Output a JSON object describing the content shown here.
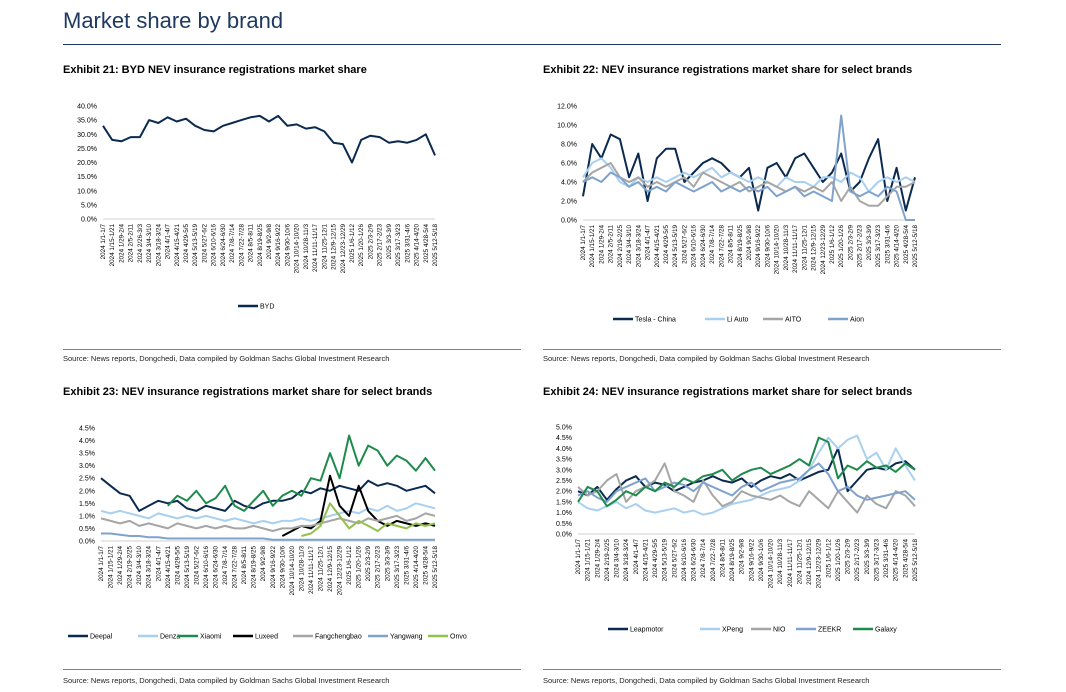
{
  "page": {
    "title": "Market share by brand",
    "source": "Source: News reports, Dongchedi, Data compiled by Goldman Sachs Global Investment Research"
  },
  "chart_data": [
    {
      "id": "ex21",
      "type": "line",
      "title": "Exhibit 21: BYD NEV insurance registrations market share",
      "xlabel": "",
      "ylabel": "",
      "ylim": [
        0,
        0.4
      ],
      "ytick_step": 0.05,
      "ytick_decimals": 1,
      "legend_position": "bottom",
      "categories": [
        "2024 1/1-1/7",
        "2024 1/15-1/21",
        "2024 1/29-2/4",
        "2024 2/5-2/11",
        "2024 2/26-3/3",
        "2024 3/4-3/10",
        "2024 3/18-3/24",
        "2024 4/1-4/7",
        "2024 4/15-4/21",
        "2024 4/29-5/5",
        "2024 5/13-5/19",
        "2024 5/27-6/2",
        "2024 6/10-6/16",
        "2024 6/24-6/30",
        "2024 7/8-7/14",
        "2024 7/22-7/28",
        "2024 8/5-8/11",
        "2024 8/19-8/25",
        "2024 9/2-9/8",
        "2024 9/16-9/22",
        "2024 9/30-10/6",
        "2024 10/14-10/20",
        "2024 10/28-11/3",
        "2024 11/11-11/17",
        "2024 11/25-12/1",
        "2024 12/9-12/15",
        "2024 12/23-12/29",
        "2025 1/6-1/12",
        "2025 1/20-1/26",
        "2025 2/3-2/9",
        "2025 2/17-2/23",
        "2025 3/3-3/9",
        "2025 3/17-3/23",
        "2025 3/31-4/6",
        "2025 4/14-4/20",
        "2025 4/28-5/4",
        "2025 5/12-5/18"
      ],
      "series": [
        {
          "name": "BYD",
          "color": "#0b2a50",
          "values": [
            0.33,
            0.28,
            0.275,
            0.29,
            0.29,
            0.35,
            0.34,
            0.36,
            0.345,
            0.355,
            0.33,
            0.315,
            0.31,
            0.33,
            0.34,
            0.35,
            0.36,
            0.365,
            0.345,
            0.365,
            0.33,
            0.335,
            0.32,
            0.325,
            0.31,
            0.27,
            0.265,
            0.2,
            0.28,
            0.295,
            0.29,
            0.27,
            0.275,
            0.27,
            0.28,
            0.3,
            0.225
          ]
        }
      ]
    },
    {
      "id": "ex22",
      "type": "line",
      "title": "Exhibit 22: NEV insurance registrations market share for select brands",
      "xlabel": "",
      "ylabel": "",
      "ylim": [
        0,
        0.12
      ],
      "ytick_step": 0.02,
      "ytick_decimals": 1,
      "legend_position": "bottom",
      "categories": [
        "2024 1/1-1/7",
        "2024 1/15-1/21",
        "2024 1/29-2/4",
        "2024 2/5-2/11",
        "2024 2/19-2/25",
        "2024 3/4-3/10",
        "2024 3/18-3/24",
        "2024 4/1-4/7",
        "2024 4/15-4/21",
        "2024 4/29-5/5",
        "2024 5/13-5/19",
        "2024 5/27-6/2",
        "2024 6/10-6/16",
        "2024 6/24-6/30",
        "2024 7/8-7/14",
        "2024 7/22-7/28",
        "2024 8/5-8/11",
        "2024 8/19-8/25",
        "2024 9/2-9/8",
        "2024 9/16-9/22",
        "2024 9/30-10/6",
        "2024 10/14-10/20",
        "2024 10/28-11/3",
        "2024 11/11-11/17",
        "2024 11/25-12/1",
        "2024 12/9-12/15",
        "2024 12/23-12/29",
        "2025 1/6-1/12",
        "2025 1/20-1/26",
        "2025 2/3-2/9",
        "2025 2/17-2/23",
        "2025 3/3-3/9",
        "2025 3/17-3/23",
        "2025 3/31-4/6",
        "2025 4/14-4/20",
        "2025 4/28-5/4",
        "2025 5/12-5/18"
      ],
      "series": [
        {
          "name": "Tesla - China",
          "color": "#0b2a50",
          "values": [
            0.025,
            0.08,
            0.065,
            0.09,
            0.085,
            0.045,
            0.07,
            0.02,
            0.065,
            0.075,
            0.075,
            0.04,
            0.05,
            0.06,
            0.065,
            0.06,
            0.05,
            0.045,
            0.055,
            0.01,
            0.055,
            0.06,
            0.045,
            0.065,
            0.07,
            0.055,
            0.04,
            0.05,
            0.07,
            0.03,
            0.04,
            0.065,
            0.085,
            0.02,
            0.055,
            0.01,
            0.045
          ]
        },
        {
          "name": "Li Auto",
          "color": "#a9d0ee",
          "values": [
            0.045,
            0.06,
            0.065,
            0.055,
            0.04,
            0.035,
            0.045,
            0.04,
            0.045,
            0.04,
            0.045,
            0.05,
            0.045,
            0.05,
            0.055,
            0.045,
            0.05,
            0.045,
            0.04,
            0.045,
            0.04,
            0.035,
            0.045,
            0.04,
            0.04,
            0.035,
            0.045,
            0.045,
            0.04,
            0.05,
            0.045,
            0.03,
            0.04,
            0.045,
            0.04,
            0.045,
            0.04
          ]
        },
        {
          "name": "AITO",
          "color": "#a6a6a6",
          "values": [
            0.04,
            0.05,
            0.055,
            0.06,
            0.045,
            0.04,
            0.045,
            0.035,
            0.04,
            0.035,
            0.04,
            0.045,
            0.035,
            0.05,
            0.045,
            0.04,
            0.035,
            0.04,
            0.03,
            0.035,
            0.04,
            0.035,
            0.03,
            0.035,
            0.03,
            0.035,
            0.03,
            0.04,
            0.02,
            0.035,
            0.02,
            0.015,
            0.015,
            0.025,
            0.035,
            0.035,
            0.04
          ]
        },
        {
          "name": "Aion",
          "color": "#7fa3cd",
          "values": [
            0.04,
            0.045,
            0.04,
            0.05,
            0.045,
            0.035,
            0.04,
            0.03,
            0.035,
            0.03,
            0.04,
            0.035,
            0.03,
            0.035,
            0.04,
            0.03,
            0.035,
            0.03,
            0.035,
            0.03,
            0.035,
            0.025,
            0.03,
            0.035,
            0.025,
            0.03,
            0.025,
            0.02,
            0.11,
            0.03,
            0.025,
            0.03,
            0.025,
            0.035,
            0.03,
            0.0,
            0.0
          ]
        }
      ]
    },
    {
      "id": "ex23",
      "type": "line",
      "title": "Exhibit 23: NEV insurance registrations market share for select brands",
      "xlabel": "",
      "ylabel": "",
      "ylim": [
        0,
        0.045
      ],
      "ytick_step": 0.005,
      "ytick_decimals": 1,
      "legend_position": "bottom",
      "categories": [
        "2024 1/1-1/7",
        "2024 1/15-1/21",
        "2024 1/29-2/4",
        "2024 2/19-2/25",
        "2024 3/4-3/10",
        "2024 3/18-3/24",
        "2024 4/1-4/7",
        "2024 4/15-4/21",
        "2024 4/29-5/5",
        "2024 5/13-5/19",
        "2024 5/27-6/2",
        "2024 6/10-6/16",
        "2024 6/24-6/30",
        "2024 7/8-7/14",
        "2024 7/22-7/28",
        "2024 8/5-8/11",
        "2024 8/19-8/25",
        "2024 9/2-9/8",
        "2024 9/16-9/22",
        "2024 9/30-10/6",
        "2024 10/14-10/20",
        "2024 10/28-11/3",
        "2024 11/11-11/17",
        "2024 11/25-12/1",
        "2024 12/9-12/15",
        "2024 12/23-12/29",
        "2025 1/6-1/12",
        "2025 1/20-1/26",
        "2025 2/3-2/9",
        "2025 2/17-2/23",
        "2025 3/3-3/9",
        "2025 3/17-3/23",
        "2025 3/31-4/6",
        "2025 4/14-4/20",
        "2025 4/28-5/4",
        "2025 5/12-5/18"
      ],
      "series": [
        {
          "name": "Deepal",
          "color": "#0b2a50",
          "values": [
            0.025,
            0.022,
            0.019,
            0.018,
            0.012,
            0.014,
            0.016,
            0.015,
            0.016,
            0.013,
            0.012,
            0.014,
            0.013,
            0.012,
            0.016,
            0.014,
            0.013,
            0.015,
            0.016,
            0.016,
            0.017,
            0.02,
            0.019,
            0.021,
            0.02,
            0.022,
            0.021,
            0.02,
            0.024,
            0.022,
            0.023,
            0.022,
            0.02,
            0.021,
            0.022,
            0.019
          ]
        },
        {
          "name": "Denza",
          "color": "#a9d0ee",
          "values": [
            0.012,
            0.011,
            0.012,
            0.011,
            0.01,
            0.009,
            0.011,
            0.01,
            0.009,
            0.01,
            0.009,
            0.01,
            0.009,
            0.008,
            0.009,
            0.008,
            0.007,
            0.008,
            0.007,
            0.008,
            0.008,
            0.009,
            0.008,
            0.009,
            0.01,
            0.011,
            0.012,
            0.011,
            0.013,
            0.012,
            0.014,
            0.012,
            0.013,
            0.015,
            0.014,
            0.013
          ]
        },
        {
          "name": "Xiaomi",
          "color": "#1e8a4c",
          "values": [
            null,
            null,
            null,
            null,
            null,
            null,
            null,
            0.014,
            0.018,
            0.016,
            0.02,
            0.015,
            0.017,
            0.022,
            0.014,
            0.012,
            0.016,
            0.02,
            0.014,
            0.018,
            0.02,
            0.018,
            0.025,
            0.024,
            0.035,
            0.025,
            0.042,
            0.03,
            0.038,
            0.036,
            0.03,
            0.034,
            0.032,
            0.028,
            0.033,
            0.028
          ]
        },
        {
          "name": "Luxeed",
          "color": "#000000",
          "values": [
            null,
            null,
            null,
            null,
            null,
            null,
            null,
            null,
            null,
            null,
            null,
            null,
            null,
            null,
            null,
            null,
            null,
            null,
            null,
            0.002,
            0.004,
            0.006,
            0.005,
            0.008,
            0.026,
            0.014,
            0.01,
            0.022,
            0.012,
            0.008,
            0.006,
            0.008,
            0.007,
            0.006,
            0.007,
            0.006
          ]
        },
        {
          "name": "Fangchengbao",
          "color": "#a6a6a6",
          "values": [
            0.009,
            0.008,
            0.007,
            0.008,
            0.006,
            0.007,
            0.006,
            0.005,
            0.007,
            0.006,
            0.005,
            0.006,
            0.005,
            0.006,
            0.005,
            0.005,
            0.006,
            0.005,
            0.004,
            0.005,
            0.005,
            0.006,
            0.006,
            0.007,
            0.008,
            0.009,
            0.008,
            0.007,
            0.009,
            0.008,
            0.009,
            0.01,
            0.008,
            0.009,
            0.011,
            0.01
          ]
        },
        {
          "name": "Yangwang",
          "color": "#7fa3cd",
          "values": [
            0.003,
            0.003,
            0.0025,
            0.002,
            0.002,
            0.0015,
            0.0015,
            0.001,
            0.001,
            0.001,
            0.001,
            0.001,
            0.001,
            0.001,
            0.001,
            0.001,
            0.001,
            0.001,
            0.0005,
            0.0005,
            0.0005,
            0.0005,
            0.0005,
            0.0005,
            0.0005,
            0.0005,
            0.0005,
            0.0005,
            0.0005,
            0.0005,
            0.0005,
            0.0005,
            0.0005,
            0.0005,
            0.0005,
            0.0005
          ]
        },
        {
          "name": "Onvo",
          "color": "#92c04a",
          "values": [
            null,
            null,
            null,
            null,
            null,
            null,
            null,
            null,
            null,
            null,
            null,
            null,
            null,
            null,
            null,
            null,
            null,
            null,
            null,
            null,
            null,
            0.002,
            0.003,
            0.006,
            0.015,
            0.01,
            0.005,
            0.008,
            0.006,
            0.004,
            0.007,
            0.006,
            0.005,
            0.007,
            0.006,
            0.007
          ]
        }
      ]
    },
    {
      "id": "ex24",
      "type": "line",
      "title": "Exhibit 24: NEV insurance registrations market share for select brands",
      "xlabel": "",
      "ylabel": "",
      "ylim": [
        0,
        0.05
      ],
      "ytick_step": 0.005,
      "ytick_decimals": 1,
      "legend_position": "bottom",
      "categories": [
        "2024 1/1-1/7",
        "2024 1/15-1/21",
        "2024 1/29-2/4",
        "2024 2/19-2/25",
        "2024 3/4-3/10",
        "2024 3/18-3/24",
        "2024 4/1-4/7",
        "2024 4/15-4/21",
        "2024 4/29-5/5",
        "2024 5/13-5/19",
        "2024 5/27-6/2",
        "2024 6/10-6/16",
        "2024 6/24-6/30",
        "2024 7/8-7/14",
        "2024 7/22-7/28",
        "2024 8/5-8/11",
        "2024 8/19-8/25",
        "2024 9/2-9/8",
        "2024 9/16-9/22",
        "2024 9/30-10/6",
        "2024 10/14-10/20",
        "2024 10/28-11/3",
        "2024 11/11-11/17",
        "2024 11/25-12/1",
        "2024 12/9-12/15",
        "2024 12/23-12/29",
        "2025 1/6-1/12",
        "2025 1/20-1/26",
        "2025 2/3-2/9",
        "2025 2/17-2/23",
        "2025 3/3-3/9",
        "2025 3/17-3/23",
        "2025 3/31-4/6",
        "2025 4/14-4/20",
        "2025 4/28-5/4",
        "2025 5/12-5/18"
      ],
      "series": [
        {
          "name": "Leapmotor",
          "color": "#0b2a50",
          "values": [
            0.02,
            0.018,
            0.022,
            0.016,
            0.021,
            0.025,
            0.027,
            0.022,
            0.024,
            0.023,
            0.02,
            0.022,
            0.024,
            0.025,
            0.027,
            0.025,
            0.024,
            0.026,
            0.022,
            0.025,
            0.027,
            0.026,
            0.028,
            0.025,
            0.027,
            0.029,
            0.03,
            0.04,
            0.02,
            0.025,
            0.03,
            0.031,
            0.03,
            0.033,
            0.034,
            0.03
          ]
        },
        {
          "name": "XPeng",
          "color": "#a9d0ee",
          "values": [
            0.015,
            0.012,
            0.011,
            0.013,
            0.015,
            0.012,
            0.014,
            0.011,
            0.01,
            0.011,
            0.012,
            0.01,
            0.011,
            0.009,
            0.01,
            0.012,
            0.014,
            0.015,
            0.016,
            0.018,
            0.02,
            0.021,
            0.022,
            0.025,
            0.03,
            0.038,
            0.045,
            0.04,
            0.044,
            0.046,
            0.035,
            0.038,
            0.03,
            0.04,
            0.032,
            0.025
          ]
        },
        {
          "name": "NIO",
          "color": "#a6a6a6",
          "values": [
            0.022,
            0.018,
            0.02,
            0.025,
            0.028,
            0.015,
            0.02,
            0.022,
            0.025,
            0.033,
            0.02,
            0.018,
            0.015,
            0.025,
            0.018,
            0.013,
            0.015,
            0.02,
            0.018,
            0.017,
            0.016,
            0.018,
            0.015,
            0.013,
            0.02,
            0.016,
            0.012,
            0.02,
            0.015,
            0.01,
            0.018,
            0.014,
            0.012,
            0.02,
            0.018,
            0.013
          ]
        },
        {
          "name": "ZEEKR",
          "color": "#7fa3cd",
          "values": [
            0.018,
            0.02,
            0.017,
            0.015,
            0.02,
            0.022,
            0.024,
            0.026,
            0.02,
            0.022,
            0.024,
            0.023,
            0.02,
            0.024,
            0.022,
            0.02,
            0.018,
            0.022,
            0.024,
            0.02,
            0.022,
            0.024,
            0.025,
            0.026,
            0.03,
            0.033,
            0.028,
            0.02,
            0.022,
            0.018,
            0.016,
            0.017,
            0.018,
            0.019,
            0.02,
            0.016
          ]
        },
        {
          "name": "Galaxy",
          "color": "#1e8a4c",
          "values": [
            0.015,
            0.022,
            0.02,
            0.013,
            0.016,
            0.02,
            0.018,
            0.022,
            0.02,
            0.024,
            0.022,
            0.026,
            0.024,
            0.027,
            0.028,
            0.03,
            0.025,
            0.028,
            0.03,
            0.031,
            0.028,
            0.03,
            0.032,
            0.035,
            0.032,
            0.045,
            0.043,
            0.026,
            0.032,
            0.03,
            0.034,
            0.031,
            0.032,
            0.029,
            0.033,
            0.03
          ]
        }
      ]
    }
  ]
}
